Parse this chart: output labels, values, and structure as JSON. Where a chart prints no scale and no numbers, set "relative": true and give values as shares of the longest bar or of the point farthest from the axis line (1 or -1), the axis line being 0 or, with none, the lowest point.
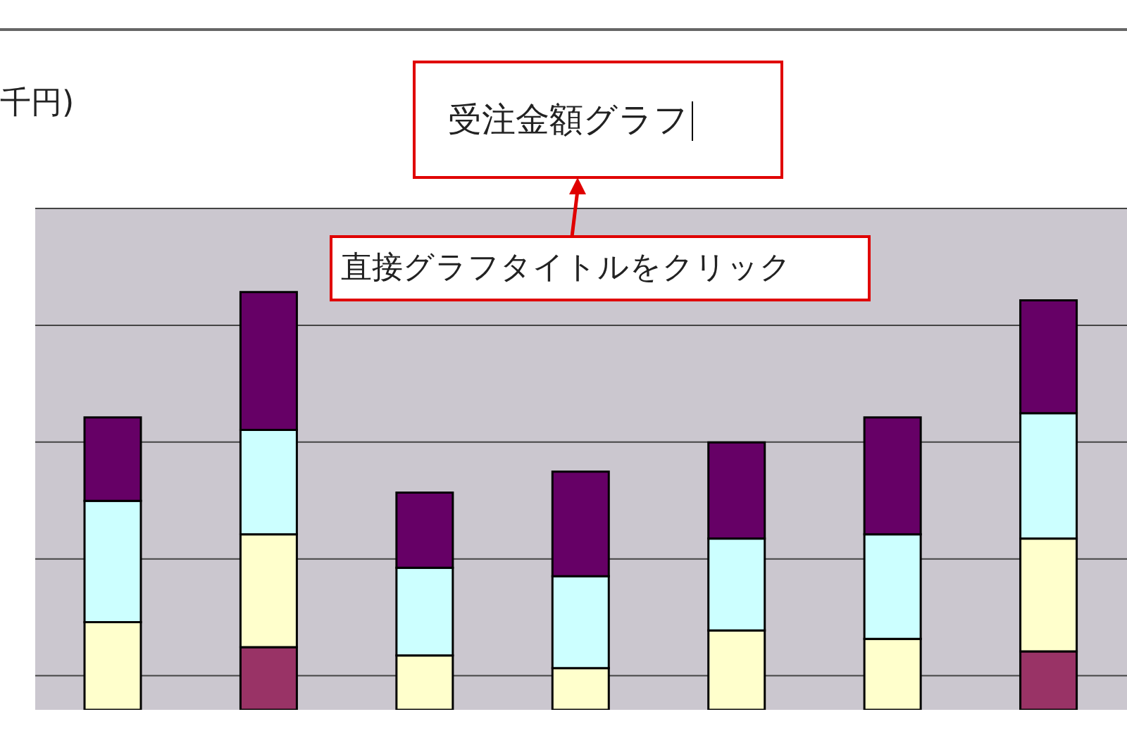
{
  "chart_data": {
    "type": "bar",
    "title": "受注金額グラフ",
    "annotations": [
      "千円)",
      "直接グラフタイトルをクリック"
    ],
    "categories": [
      null,
      null,
      null,
      null,
      null,
      null,
      null
    ],
    "stacked": true,
    "relative": true,
    "grid": "y",
    "legend": false,
    "series": [
      {
        "color": "#993366",
        "values": [
          0,
          0.15,
          0,
          0,
          0,
          0,
          0.14
        ]
      },
      {
        "color": "#ffffcc",
        "values": [
          0.21,
          0.27,
          0.13,
          0.1,
          0.19,
          0.17,
          0.27
        ]
      },
      {
        "color": "#ccffff",
        "values": [
          0.29,
          0.25,
          0.21,
          0.22,
          0.22,
          0.25,
          0.3
        ]
      },
      {
        "color": "#660066",
        "values": [
          0.2,
          0.33,
          0.18,
          0.25,
          0.23,
          0.28,
          0.27
        ]
      }
    ]
  }
}
